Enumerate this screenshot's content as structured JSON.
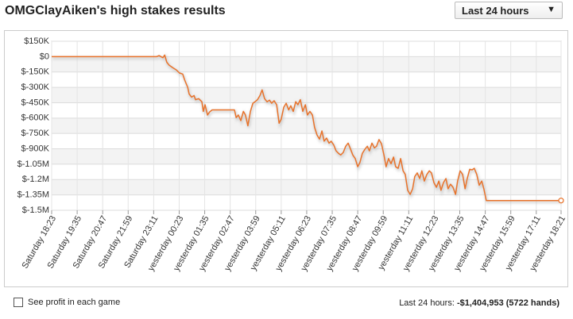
{
  "header": {
    "dropdown": "Last 24 hours"
  },
  "footer": {
    "checkbox_label": "See profit in each game",
    "summary_label": "Last 24 hours:",
    "summary_value": "-$1,404,953 (5722 hands)"
  },
  "chart_data": {
    "type": "line",
    "title": "OMGClayAiken's high stakes results",
    "color": "#e8722a",
    "grid": true,
    "xlim": [
      0,
      1438
    ],
    "xticks": [
      {
        "value": 0,
        "label": "Saturday 18:23"
      },
      {
        "value": 72,
        "label": "Saturday 19:35"
      },
      {
        "value": 144,
        "label": "Saturday 20:47"
      },
      {
        "value": 216,
        "label": "Saturday 21:59"
      },
      {
        "value": 288,
        "label": "Saturday 23:11"
      },
      {
        "value": 360,
        "label": "yesterday 00:23"
      },
      {
        "value": 432,
        "label": "yesterday 01:35"
      },
      {
        "value": 504,
        "label": "yesterday 02:47"
      },
      {
        "value": 576,
        "label": "yesterday 03:59"
      },
      {
        "value": 648,
        "label": "yesterday 05:11"
      },
      {
        "value": 720,
        "label": "yesterday 06:23"
      },
      {
        "value": 792,
        "label": "yesterday 07:35"
      },
      {
        "value": 864,
        "label": "yesterday 08:47"
      },
      {
        "value": 936,
        "label": "yesterday 09:59"
      },
      {
        "value": 1008,
        "label": "yesterday 11:11"
      },
      {
        "value": 1080,
        "label": "yesterday 12:23"
      },
      {
        "value": 1152,
        "label": "yesterday 13:35"
      },
      {
        "value": 1224,
        "label": "yesterday 14:47"
      },
      {
        "value": 1296,
        "label": "yesterday 15:59"
      },
      {
        "value": 1368,
        "label": "yesterday 17:11"
      },
      {
        "value": 1438,
        "label": "yesterday 18:21"
      }
    ],
    "ylim": [
      -1500000,
      150000
    ],
    "yticks": [
      {
        "value": 150000,
        "label": "$150K"
      },
      {
        "value": 0,
        "label": "$0"
      },
      {
        "value": -150000,
        "label": "$-150K"
      },
      {
        "value": -300000,
        "label": "$-300K"
      },
      {
        "value": -450000,
        "label": "$-450K"
      },
      {
        "value": -600000,
        "label": "$-600K"
      },
      {
        "value": -750000,
        "label": "$-750K"
      },
      {
        "value": -900000,
        "label": "$-900K"
      },
      {
        "value": -1050000,
        "label": "$-1.05M"
      },
      {
        "value": -1200000,
        "label": "$-1.2M"
      },
      {
        "value": -1350000,
        "label": "$-1.35M"
      },
      {
        "value": -1500000,
        "label": "$-1.5M"
      }
    ],
    "x": [
      0,
      296,
      303,
      314,
      319,
      325,
      332,
      343,
      352,
      361,
      370,
      375,
      384,
      388,
      395,
      402,
      406,
      415,
      424,
      428,
      433,
      440,
      446,
      453,
      460,
      516,
      521,
      527,
      534,
      541,
      547,
      554,
      561,
      568,
      574,
      581,
      588,
      594,
      601,
      608,
      615,
      621,
      628,
      635,
      642,
      648,
      655,
      662,
      669,
      675,
      682,
      689,
      695,
      702,
      709,
      716,
      722,
      729,
      736,
      742,
      749,
      756,
      763,
      769,
      776,
      783,
      789,
      796,
      803,
      810,
      816,
      823,
      830,
      837,
      844,
      850,
      857,
      864,
      870,
      877,
      884,
      891,
      897,
      904,
      911,
      917,
      924,
      931,
      938,
      944,
      951,
      958,
      965,
      971,
      978,
      985,
      992,
      998,
      1005,
      1012,
      1019,
      1025,
      1032,
      1039,
      1045,
      1052,
      1059,
      1066,
      1072,
      1079,
      1086,
      1093,
      1099,
      1106,
      1113,
      1119,
      1126,
      1133,
      1140,
      1146,
      1153,
      1160,
      1167,
      1173,
      1180,
      1187,
      1193,
      1200,
      1207,
      1214,
      1220,
      1227,
      1438
    ],
    "values": [
      0,
      0,
      10000,
      -10000,
      15000,
      -55000,
      -85000,
      -110000,
      -130000,
      -160000,
      -170000,
      -225000,
      -300000,
      -365000,
      -395000,
      -380000,
      -420000,
      -410000,
      -440000,
      -535000,
      -470000,
      -570000,
      -540000,
      -520000,
      -520000,
      -520000,
      -595000,
      -570000,
      -625000,
      -535000,
      -570000,
      -675000,
      -535000,
      -455000,
      -440000,
      -420000,
      -380000,
      -325000,
      -410000,
      -440000,
      -425000,
      -455000,
      -430000,
      -470000,
      -650000,
      -610000,
      -495000,
      -455000,
      -520000,
      -480000,
      -535000,
      -440000,
      -470000,
      -420000,
      -535000,
      -470000,
      -570000,
      -535000,
      -570000,
      -690000,
      -765000,
      -805000,
      -725000,
      -825000,
      -795000,
      -845000,
      -825000,
      -860000,
      -920000,
      -945000,
      -960000,
      -935000,
      -875000,
      -845000,
      -905000,
      -960000,
      -995000,
      -1075000,
      -1035000,
      -945000,
      -905000,
      -875000,
      -920000,
      -845000,
      -890000,
      -875000,
      -810000,
      -850000,
      -960000,
      -1075000,
      -995000,
      -1045000,
      -980000,
      -1075000,
      -1090000,
      -995000,
      -1115000,
      -1150000,
      -1305000,
      -1345000,
      -1290000,
      -1170000,
      -1135000,
      -1190000,
      -1115000,
      -1215000,
      -1150000,
      -1115000,
      -1135000,
      -1230000,
      -1275000,
      -1215000,
      -1305000,
      -1230000,
      -1190000,
      -1290000,
      -1245000,
      -1275000,
      -1345000,
      -1215000,
      -1115000,
      -1150000,
      -1290000,
      -1190000,
      -1100000,
      -1105000,
      -1090000,
      -1150000,
      -1255000,
      -1215000,
      -1290000,
      -1404953,
      -1404953
    ]
  }
}
